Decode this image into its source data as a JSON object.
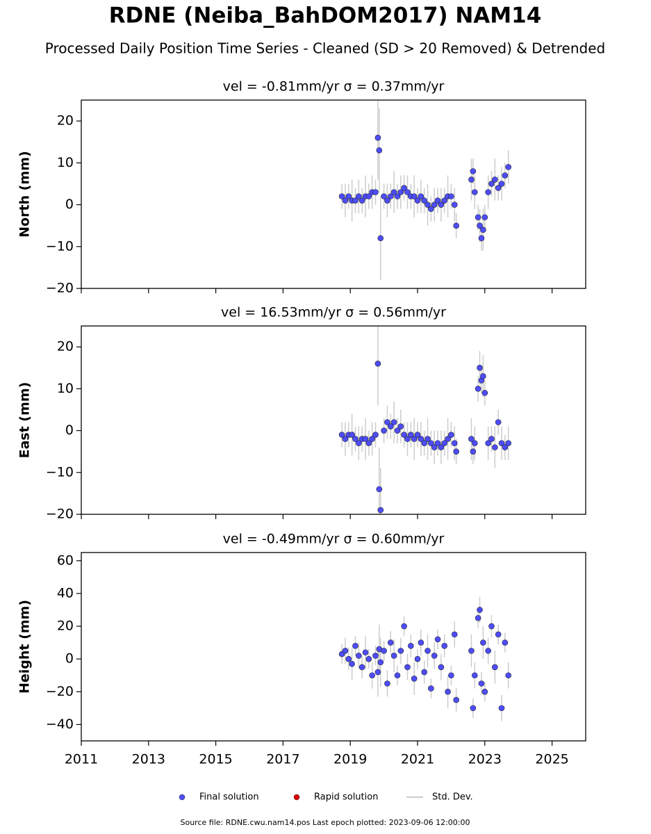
{
  "title": "RDNE (Neiba_BahDOM2017) NAM14",
  "subtitle": "Processed Daily Position Time Series - Cleaned (SD > 20 Removed) & Detrended",
  "legend": [
    {
      "label": "Final solution",
      "color": "#4d4dff"
    },
    {
      "label": "Rapid solution",
      "color": "#e00000"
    },
    {
      "label": "Std. Dev.",
      "color": "#cccccc"
    }
  ],
  "source": "Source file: RDNE.cwu.nam14.pos  Last epoch plotted: 2023-09-06 12:00:00",
  "chart_data": [
    {
      "type": "scatter",
      "title": "vel = -0.81mm/yr   σ = 0.37mm/yr",
      "y_label": "North (mm)",
      "color": "#4d4dff",
      "error_color": "#cccccc",
      "x": [
        2018.75,
        2018.85,
        2018.95,
        2019.05,
        2019.15,
        2019.25,
        2019.35,
        2019.45,
        2019.55,
        2019.65,
        2019.75,
        2019.82,
        2019.86,
        2019.9,
        2020.0,
        2020.1,
        2020.2,
        2020.3,
        2020.4,
        2020.5,
        2020.6,
        2020.7,
        2020.8,
        2020.9,
        2021.0,
        2021.1,
        2021.2,
        2021.3,
        2021.4,
        2021.5,
        2021.6,
        2021.7,
        2021.8,
        2021.9,
        2022.0,
        2022.1,
        2022.15,
        2022.6,
        2022.65,
        2022.7,
        2022.8,
        2022.85,
        2022.9,
        2022.95,
        2023.0,
        2023.1,
        2023.2,
        2023.3,
        2023.4,
        2023.5,
        2023.6,
        2023.7
      ],
      "values": [
        2,
        1,
        2,
        1,
        1,
        2,
        1,
        2,
        2,
        3,
        3,
        16,
        13,
        -8,
        2,
        1,
        2,
        3,
        2,
        3,
        4,
        3,
        2,
        2,
        1,
        2,
        1,
        0,
        -1,
        0,
        1,
        0,
        1,
        2,
        2,
        0,
        -5,
        6,
        8,
        3,
        -3,
        -5,
        -8,
        -6,
        -3,
        3,
        5,
        6,
        4,
        5,
        7,
        9
      ],
      "errors": [
        3,
        4,
        3,
        5,
        3,
        4,
        3,
        5,
        3,
        4,
        3,
        10,
        10,
        10,
        3,
        4,
        3,
        5,
        3,
        4,
        3,
        4,
        3,
        5,
        3,
        4,
        3,
        5,
        3,
        4,
        3,
        4,
        3,
        5,
        3,
        4,
        3,
        5,
        3,
        4,
        3,
        4,
        3,
        5,
        3,
        4,
        3,
        5,
        3,
        4,
        3,
        4
      ],
      "xlim": [
        2011,
        2026
      ],
      "xticks": [
        2011,
        2013,
        2015,
        2017,
        2019,
        2021,
        2023,
        2025
      ],
      "ylim": [
        -20,
        25
      ],
      "yticks": [
        {
          "value": -20,
          "label": "−20"
        },
        {
          "value": -10,
          "label": "−10"
        },
        0,
        10,
        20
      ]
    },
    {
      "type": "scatter",
      "title": "vel = 16.53mm/yr   σ = 0.56mm/yr",
      "y_label": "East (mm)",
      "color": "#4d4dff",
      "error_color": "#cccccc",
      "x": [
        2018.75,
        2018.85,
        2018.95,
        2019.05,
        2019.15,
        2019.25,
        2019.35,
        2019.45,
        2019.55,
        2019.65,
        2019.75,
        2019.82,
        2019.86,
        2019.9,
        2020.0,
        2020.1,
        2020.2,
        2020.3,
        2020.4,
        2020.5,
        2020.6,
        2020.7,
        2020.8,
        2020.9,
        2021.0,
        2021.1,
        2021.2,
        2021.3,
        2021.4,
        2021.5,
        2021.6,
        2021.7,
        2021.8,
        2021.9,
        2022.0,
        2022.1,
        2022.15,
        2022.6,
        2022.65,
        2022.7,
        2022.8,
        2022.85,
        2022.9,
        2022.95,
        2023.0,
        2023.1,
        2023.2,
        2023.3,
        2023.4,
        2023.5,
        2023.6,
        2023.7
      ],
      "values": [
        -1,
        -2,
        -1,
        -1,
        -2,
        -3,
        -2,
        -2,
        -3,
        -2,
        -1,
        16,
        -14,
        -19,
        0,
        2,
        1,
        2,
        0,
        1,
        -1,
        -2,
        -1,
        -2,
        -1,
        -2,
        -3,
        -2,
        -3,
        -4,
        -3,
        -4,
        -3,
        -2,
        -1,
        -3,
        -5,
        -2,
        -5,
        -3,
        10,
        15,
        12,
        13,
        9,
        -3,
        -2,
        -4,
        2,
        -3,
        -4,
        -3
      ],
      "errors": [
        3,
        4,
        3,
        5,
        3,
        4,
        3,
        5,
        3,
        4,
        3,
        10,
        10,
        10,
        3,
        4,
        3,
        5,
        3,
        4,
        3,
        4,
        3,
        5,
        3,
        4,
        3,
        5,
        3,
        4,
        3,
        4,
        3,
        5,
        3,
        4,
        3,
        5,
        3,
        4,
        3,
        4,
        3,
        5,
        3,
        4,
        3,
        5,
        3,
        4,
        3,
        4
      ],
      "xlim": [
        2011,
        2026
      ],
      "xticks": [
        2011,
        2013,
        2015,
        2017,
        2019,
        2021,
        2023,
        2025
      ],
      "ylim": [
        -20,
        25
      ],
      "yticks": [
        {
          "value": -20,
          "label": "−20"
        },
        {
          "value": -10,
          "label": "−10"
        },
        0,
        10,
        20
      ]
    },
    {
      "type": "scatter",
      "title": "vel = -0.49mm/yr   σ = 0.60mm/yr",
      "y_label": "Height (mm)",
      "color": "#4d4dff",
      "error_color": "#cccccc",
      "x": [
        2018.75,
        2018.85,
        2018.95,
        2019.05,
        2019.15,
        2019.25,
        2019.35,
        2019.45,
        2019.55,
        2019.65,
        2019.75,
        2019.82,
        2019.86,
        2019.9,
        2020.0,
        2020.1,
        2020.2,
        2020.3,
        2020.4,
        2020.5,
        2020.6,
        2020.7,
        2020.8,
        2020.9,
        2021.0,
        2021.1,
        2021.2,
        2021.3,
        2021.4,
        2021.5,
        2021.6,
        2021.7,
        2021.8,
        2021.9,
        2022.0,
        2022.1,
        2022.15,
        2022.6,
        2022.65,
        2022.7,
        2022.8,
        2022.85,
        2022.9,
        2022.95,
        2023.0,
        2023.1,
        2023.2,
        2023.3,
        2023.4,
        2023.5,
        2023.6,
        2023.7
      ],
      "values": [
        3,
        5,
        0,
        -3,
        8,
        2,
        -5,
        4,
        0,
        -10,
        2,
        -8,
        6,
        -2,
        5,
        -15,
        10,
        2,
        -10,
        5,
        20,
        -5,
        8,
        -12,
        0,
        10,
        -8,
        5,
        -18,
        2,
        12,
        -5,
        8,
        -20,
        -10,
        15,
        -25,
        5,
        -30,
        -10,
        25,
        30,
        -15,
        10,
        -20,
        5,
        20,
        -5,
        15,
        -30,
        10,
        -10
      ],
      "errors": [
        6,
        8,
        7,
        10,
        6,
        8,
        7,
        10,
        6,
        8,
        6,
        15,
        15,
        15,
        6,
        8,
        7,
        10,
        6,
        8,
        6,
        8,
        7,
        10,
        6,
        8,
        7,
        10,
        6,
        8,
        6,
        8,
        7,
        10,
        6,
        8,
        7,
        10,
        6,
        8,
        6,
        8,
        7,
        10,
        6,
        8,
        7,
        10,
        6,
        8,
        6,
        8
      ],
      "xlim": [
        2011,
        2026
      ],
      "xticks": [
        2011,
        2013,
        2015,
        2017,
        2019,
        2021,
        2023,
        2025
      ],
      "ylim": [
        -50,
        65
      ],
      "yticks": [
        {
          "value": -40,
          "label": "−40"
        },
        {
          "value": -20,
          "label": "−20"
        },
        0,
        20,
        40,
        60
      ]
    }
  ]
}
